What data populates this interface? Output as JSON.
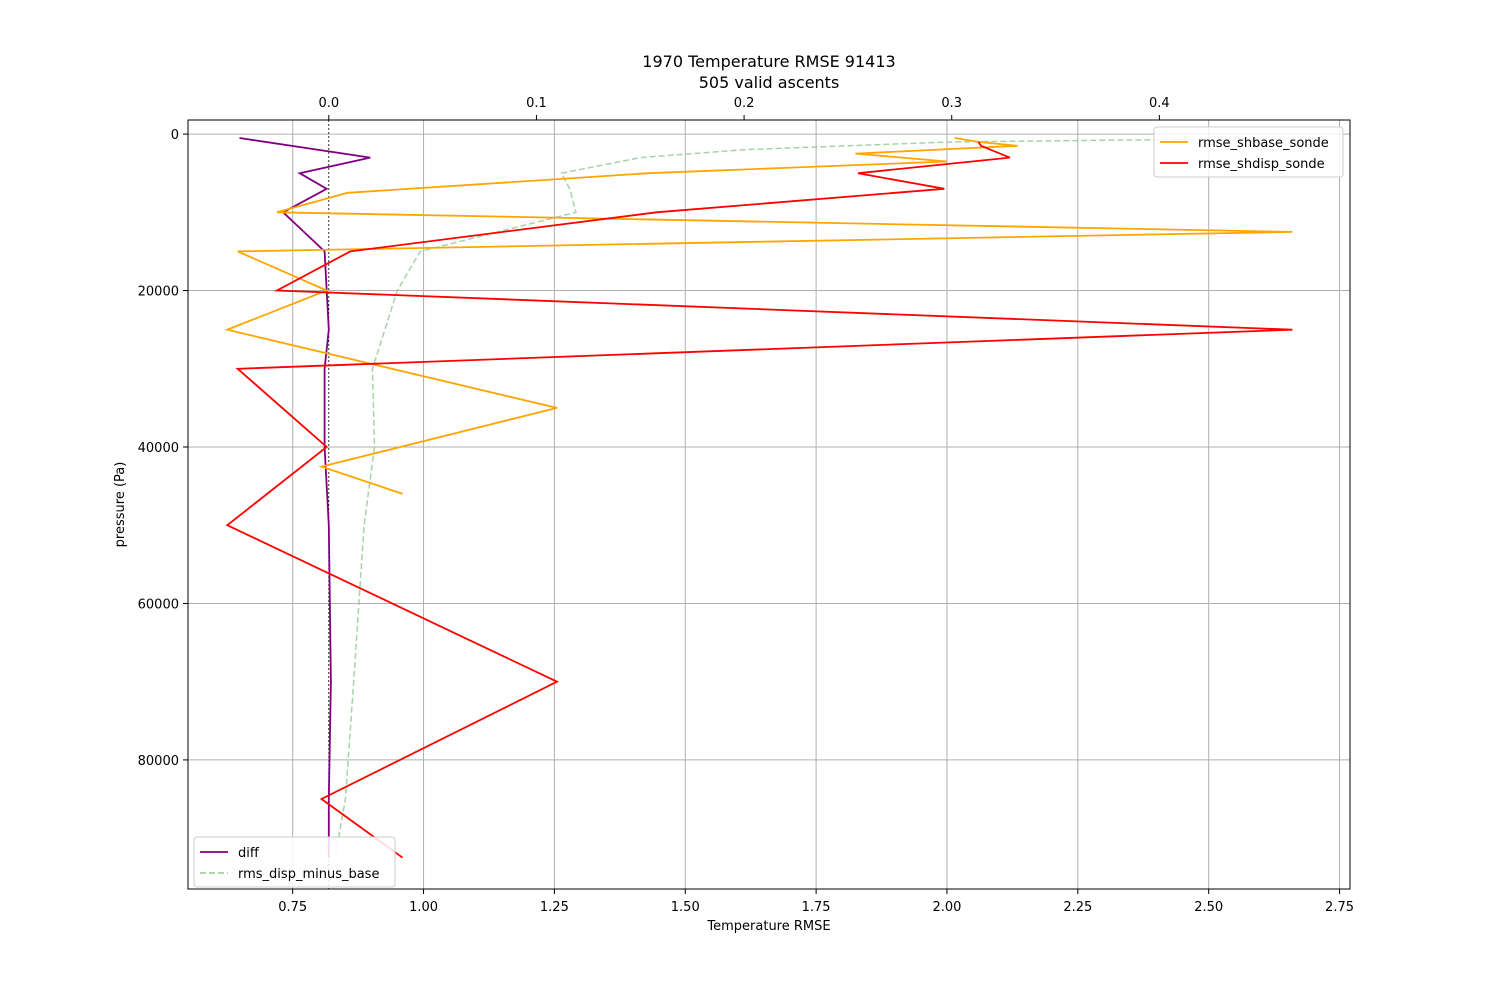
{
  "chart_data": {
    "type": "line",
    "title": "1970 Temperature RMSE 91413",
    "subtitle": "505 valid ascents",
    "xlabel": "Temperature RMSE",
    "ylabel": "pressure (Pa)",
    "xlim": [
      0.55,
      2.77
    ],
    "ylim": [
      96500,
      -1800
    ],
    "y_inverted": true,
    "grid": true,
    "xticks": [
      0.75,
      1.0,
      1.25,
      1.5,
      1.75,
      2.0,
      2.25,
      2.5,
      2.75
    ],
    "xtick_labels": [
      "0.75",
      "1.00",
      "1.25",
      "1.50",
      "1.75",
      "2.00",
      "2.25",
      "2.50",
      "2.75"
    ],
    "yticks": [
      0,
      20000,
      40000,
      60000,
      80000
    ],
    "ytick_labels": [
      "0",
      "20000",
      "40000",
      "60000",
      "80000"
    ],
    "top_axis": {
      "xlim": [
        -0.0678,
        0.4918
      ],
      "xticks": [
        0.0,
        0.1,
        0.2,
        0.3,
        0.4
      ],
      "xtick_labels": [
        "0.0",
        "0.1",
        "0.2",
        "0.3",
        "0.4"
      ],
      "zero_line": true
    },
    "legends": [
      {
        "placement": "top-right",
        "entries": [
          "rmse_shbase_sonde",
          "rmse_shdisp_sonde"
        ]
      },
      {
        "placement": "bottom-left",
        "entries": [
          "diff",
          "rms_disp_minus_base"
        ]
      }
    ],
    "series": [
      {
        "name": "rmse_shbase_sonde",
        "axis": "bottom",
        "color": "#ffa500",
        "style": "solid",
        "x": [
          2.015,
          2.06,
          2.135,
          1.825,
          2.0,
          1.43,
          0.855,
          0.72,
          2.66,
          0.645,
          0.815,
          0.625,
          1.255,
          0.805,
          0.96
        ],
        "y": [
          500,
          1000,
          1500,
          2500,
          3500,
          5000,
          7500,
          10000,
          12500,
          15000,
          20000,
          25000,
          35000,
          42500,
          46000
        ]
      },
      {
        "name": "rmse_shdisp_sonde",
        "axis": "bottom",
        "color": "#ff0000",
        "style": "solid",
        "x": [
          2.06,
          2.065,
          2.12,
          1.83,
          1.995,
          1.445,
          0.86,
          0.72,
          2.66,
          0.645,
          0.815,
          0.625,
          1.255,
          0.805,
          0.96
        ],
        "y": [
          1000,
          1500,
          3000,
          5000,
          7000,
          10000,
          15000,
          20000,
          25000,
          30000,
          40000,
          50000,
          70000,
          85000,
          92500
        ]
      },
      {
        "name": "diff",
        "axis": "top",
        "color": "#800080",
        "style": "solid",
        "x": [
          -0.043,
          0.02,
          -0.014,
          -0.001,
          -0.022,
          -0.002,
          -0.001,
          0.0,
          -0.002,
          -0.002,
          0.0,
          0.001,
          0.0,
          0.0
        ],
        "y": [
          500,
          3000,
          5000,
          7000,
          10000,
          15000,
          20000,
          25000,
          30000,
          40000,
          50000,
          70000,
          85000,
          92500
        ]
      },
      {
        "name": "rms_disp_minus_base",
        "axis": "top",
        "color": "#90c890",
        "style": "dashed",
        "x": [
          0.478,
          0.3,
          0.2,
          0.15,
          0.112,
          0.116,
          0.119,
          0.044,
          0.033,
          0.021,
          0.022,
          0.017,
          0.012,
          0.008,
          0.003
        ],
        "y": [
          500,
          1000,
          2000,
          3000,
          5000,
          7000,
          10000,
          15000,
          20000,
          30000,
          40000,
          50000,
          70000,
          85000,
          92500
        ]
      }
    ]
  }
}
